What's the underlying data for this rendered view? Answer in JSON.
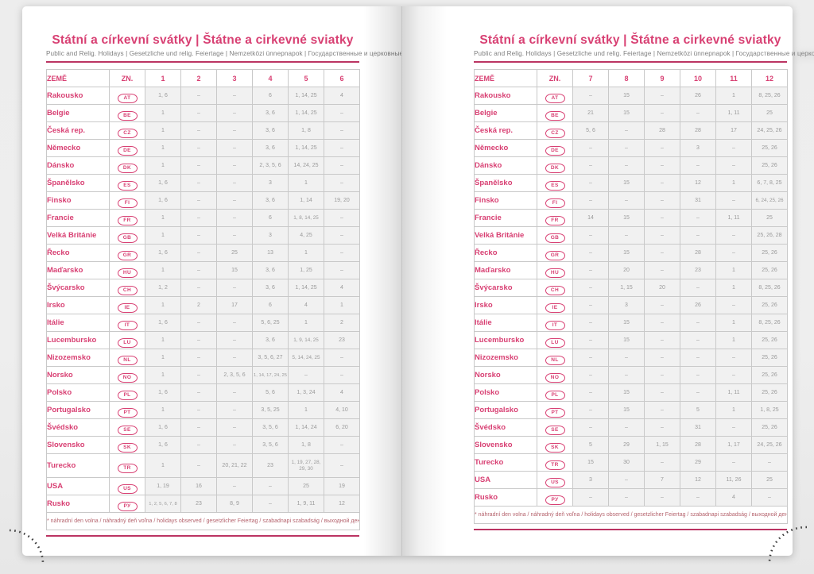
{
  "colors": {
    "accent_pink": "#d84073",
    "rule_pink": "#bb3462",
    "data_gray": "#9a9a9a",
    "cell_background": "#f1f1f1",
    "footnote_rose": "#b5636d"
  },
  "header": {
    "title": "Státní a církevní svátky | Štátne a cirkevné sviatky",
    "subtitle": "Public and Relig. Holidays | Gesetzliche und relig. Feiertage | Nemzetközi ünnepnapok | Государственные и церковные праздники"
  },
  "table": {
    "country_header": "ZEMĚ",
    "code_header": "ZN.",
    "footnote": "* náhradní den volna / náhradný deň voľna / holidays observed / gesetzlicher Feiertag / szabadnapi szabadság / выходной день"
  },
  "countries": [
    {
      "name": "Rakousko",
      "code": "AT"
    },
    {
      "name": "Belgie",
      "code": "BE"
    },
    {
      "name": "Česká rep.",
      "code": "CZ"
    },
    {
      "name": "Německo",
      "code": "DE"
    },
    {
      "name": "Dánsko",
      "code": "DK"
    },
    {
      "name": "Španělsko",
      "code": "ES"
    },
    {
      "name": "Finsko",
      "code": "FI"
    },
    {
      "name": "Francie",
      "code": "FR"
    },
    {
      "name": "Velká Británie",
      "code": "GB"
    },
    {
      "name": "Řecko",
      "code": "GR"
    },
    {
      "name": "Maďarsko",
      "code": "HU"
    },
    {
      "name": "Švýcarsko",
      "code": "CH"
    },
    {
      "name": "Irsko",
      "code": "IE"
    },
    {
      "name": "Itálie",
      "code": "IT"
    },
    {
      "name": "Lucembursko",
      "code": "LU"
    },
    {
      "name": "Nizozemsko",
      "code": "NL"
    },
    {
      "name": "Norsko",
      "code": "NO"
    },
    {
      "name": "Polsko",
      "code": "PL"
    },
    {
      "name": "Portugalsko",
      "code": "PT"
    },
    {
      "name": "Švédsko",
      "code": "SE"
    },
    {
      "name": "Slovensko",
      "code": "SK"
    },
    {
      "name": "Turecko",
      "code": "TR"
    },
    {
      "name": "USA",
      "code": "US"
    },
    {
      "name": "Rusko",
      "code": "РУ"
    }
  ],
  "pages": [
    {
      "months": [
        "1",
        "2",
        "3",
        "4",
        "5",
        "6"
      ],
      "rows": [
        [
          "1, 6",
          "–",
          "–",
          "6",
          "1, 14, 25",
          "4"
        ],
        [
          "1",
          "–",
          "–",
          "3, 6",
          "1, 14, 25",
          "–"
        ],
        [
          "1",
          "–",
          "–",
          "3, 6",
          "1, 8",
          "–"
        ],
        [
          "1",
          "–",
          "–",
          "3, 6",
          "1, 14, 25",
          "–"
        ],
        [
          "1",
          "–",
          "–",
          "2, 3, 5, 6",
          "14, 24, 25",
          "–"
        ],
        [
          "1, 6",
          "–",
          "–",
          "3",
          "1",
          "–"
        ],
        [
          "1, 6",
          "–",
          "–",
          "3, 6",
          "1, 14",
          "19, 20"
        ],
        [
          "1",
          "–",
          "–",
          "6",
          "1, 8, 14, 25",
          "–"
        ],
        [
          "1",
          "–",
          "–",
          "3",
          "4, 25",
          "–"
        ],
        [
          "1, 6",
          "–",
          "25",
          "13",
          "1",
          "–"
        ],
        [
          "1",
          "–",
          "15",
          "3, 6",
          "1, 25",
          "–"
        ],
        [
          "1, 2",
          "–",
          "–",
          "3, 6",
          "1, 14, 25",
          "4"
        ],
        [
          "1",
          "2",
          "17",
          "6",
          "4",
          "1"
        ],
        [
          "1, 6",
          "–",
          "–",
          "5, 6, 25",
          "1",
          "2"
        ],
        [
          "1",
          "–",
          "–",
          "3, 6",
          "1, 9, 14, 25",
          "23"
        ],
        [
          "1",
          "–",
          "–",
          "3, 5, 6, 27",
          "5, 14, 24, 25",
          "–"
        ],
        [
          "1",
          "–",
          "2, 3, 5, 6",
          "1, 14, 17, 24, 25",
          "–",
          "–"
        ],
        [
          "1, 6",
          "–",
          "–",
          "5, 6",
          "1, 3, 24",
          "4"
        ],
        [
          "1",
          "–",
          "–",
          "3, 5, 25",
          "1",
          "4, 10"
        ],
        [
          "1, 6",
          "–",
          "–",
          "3, 5, 6",
          "1, 14, 24",
          "6, 20"
        ],
        [
          "1, 6",
          "–",
          "–",
          "3, 5, 6",
          "1, 8",
          "–"
        ],
        [
          "1",
          "–",
          "20, 21, 22",
          "23",
          "1, 19, 27, 28, 29, 30",
          "–"
        ],
        [
          "1, 19",
          "16",
          "–",
          "–",
          "25",
          "19"
        ],
        [
          "1, 2, 5, 6, 7, 8",
          "23",
          "8, 9",
          "–",
          "1, 9, 11",
          "12"
        ]
      ]
    },
    {
      "months": [
        "7",
        "8",
        "9",
        "10",
        "11",
        "12"
      ],
      "rows": [
        [
          "–",
          "15",
          "–",
          "26",
          "1",
          "8, 25, 26"
        ],
        [
          "21",
          "15",
          "–",
          "–",
          "1, 11",
          "25"
        ],
        [
          "5, 6",
          "–",
          "28",
          "28",
          "17",
          "24, 25, 26"
        ],
        [
          "–",
          "–",
          "–",
          "3",
          "–",
          "25, 26"
        ],
        [
          "–",
          "–",
          "–",
          "–",
          "–",
          "25, 26"
        ],
        [
          "–",
          "15",
          "–",
          "12",
          "1",
          "6, 7, 8, 25"
        ],
        [
          "–",
          "–",
          "–",
          "31",
          "–",
          "6, 24, 25, 26"
        ],
        [
          "14",
          "15",
          "–",
          "–",
          "1, 11",
          "25"
        ],
        [
          "–",
          "–",
          "–",
          "–",
          "–",
          "25, 26, 28"
        ],
        [
          "–",
          "15",
          "–",
          "28",
          "–",
          "25, 26"
        ],
        [
          "–",
          "20",
          "–",
          "23",
          "1",
          "25, 26"
        ],
        [
          "–",
          "1, 15",
          "20",
          "–",
          "1",
          "8, 25, 26"
        ],
        [
          "–",
          "3",
          "–",
          "26",
          "–",
          "25, 26"
        ],
        [
          "–",
          "15",
          "–",
          "–",
          "1",
          "8, 25, 26"
        ],
        [
          "–",
          "15",
          "–",
          "–",
          "1",
          "25, 26"
        ],
        [
          "–",
          "–",
          "–",
          "–",
          "–",
          "25, 26"
        ],
        [
          "–",
          "–",
          "–",
          "–",
          "–",
          "25, 26"
        ],
        [
          "–",
          "15",
          "–",
          "–",
          "1, 11",
          "25, 26"
        ],
        [
          "–",
          "15",
          "–",
          "5",
          "1",
          "1, 8, 25"
        ],
        [
          "–",
          "–",
          "–",
          "31",
          "–",
          "25, 26"
        ],
        [
          "5",
          "29",
          "1, 15",
          "28",
          "1, 17",
          "24, 25, 26"
        ],
        [
          "15",
          "30",
          "–",
          "29",
          "–",
          "–"
        ],
        [
          "3",
          "–",
          "7",
          "12",
          "11, 26",
          "25"
        ],
        [
          "–",
          "–",
          "–",
          "–",
          "4",
          "–"
        ]
      ]
    }
  ]
}
